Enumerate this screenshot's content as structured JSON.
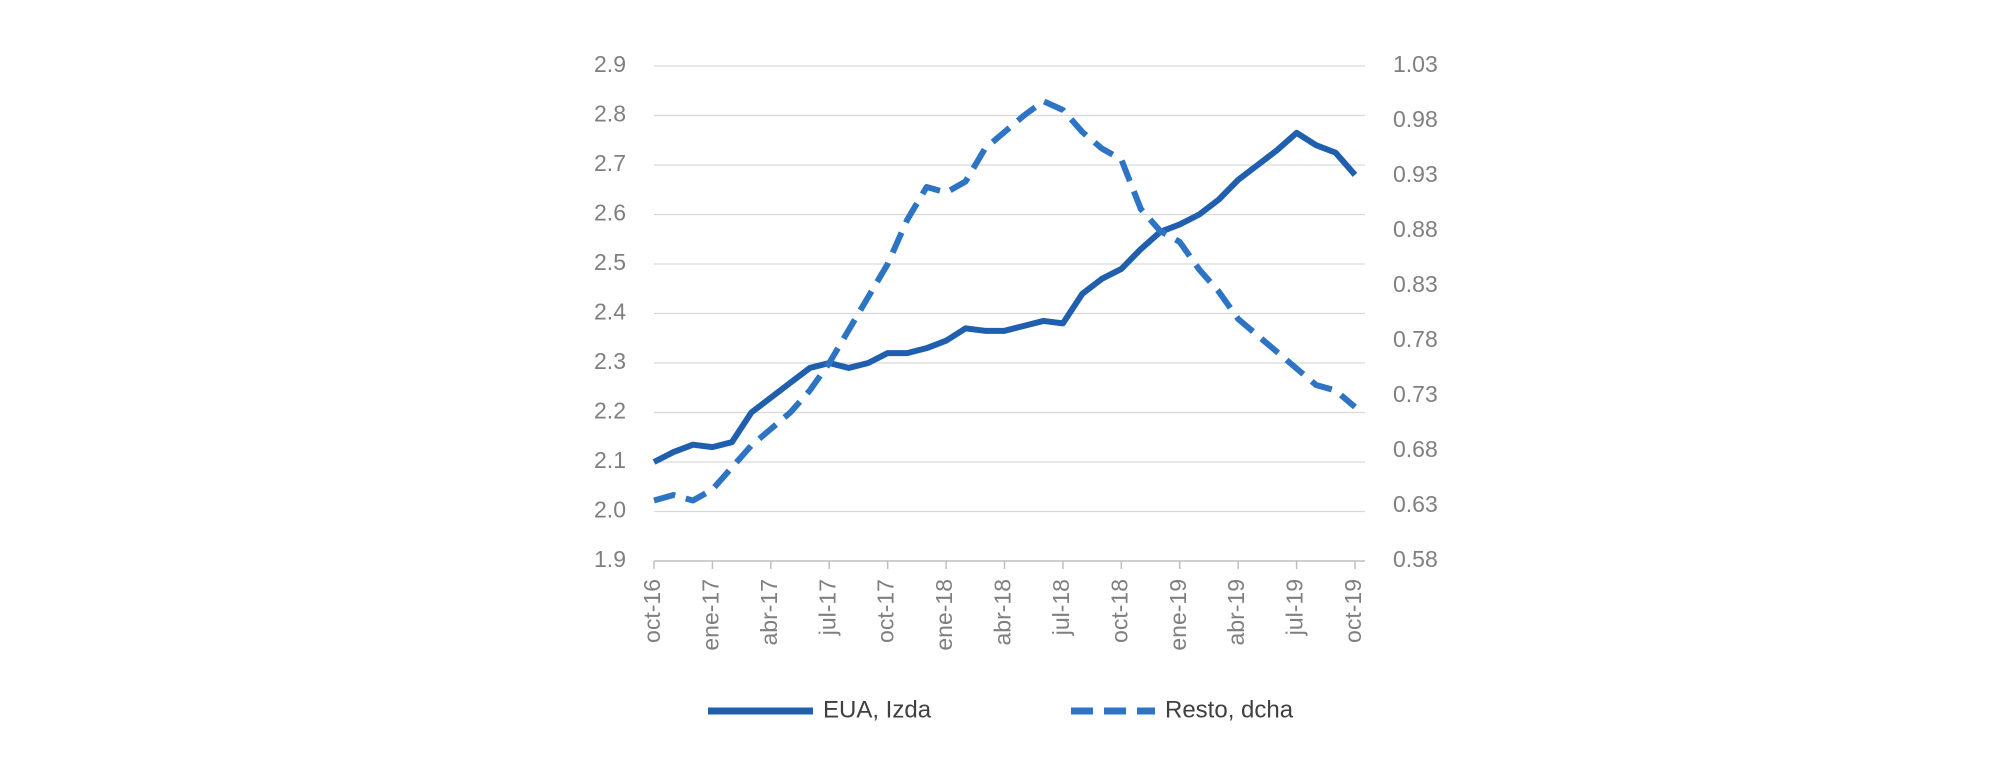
{
  "chart_data": {
    "type": "line",
    "categories": [
      "oct-16",
      null,
      null,
      "ene-17",
      null,
      null,
      "abr-17",
      null,
      null,
      "jul-17",
      null,
      null,
      "oct-17",
      null,
      null,
      "ene-18",
      null,
      null,
      "abr-18",
      null,
      null,
      "jul-18",
      null,
      null,
      "oct-18",
      null,
      null,
      "ene-19",
      null,
      null,
      "abr-19",
      null,
      null,
      "jul-19",
      null,
      null,
      "oct-19"
    ],
    "series": [
      {
        "name": "EUA, Izda",
        "color": "#1f5fae",
        "dashed": false,
        "values": [
          2.1,
          2.12,
          2.135,
          2.13,
          2.14,
          2.2,
          2.23,
          2.26,
          2.29,
          2.3,
          2.29,
          2.3,
          2.32,
          2.32,
          2.33,
          2.345,
          2.37,
          2.365,
          2.365,
          2.375,
          2.385,
          2.38,
          2.44,
          2.47,
          2.49,
          2.53,
          2.565,
          2.58,
          2.6,
          2.63,
          2.67,
          2.7,
          2.73,
          2.765,
          2.74,
          2.725,
          2.68
        ]
      },
      {
        "name": "Resto, dcha",
        "color": "#2e74c4",
        "dashed": true,
        "axis": "y2",
        "values": [
          0.635,
          0.64,
          0.635,
          0.645,
          0.665,
          0.685,
          0.7,
          0.715,
          0.735,
          0.76,
          0.79,
          0.82,
          0.85,
          0.89,
          0.92,
          0.915,
          0.925,
          0.955,
          0.97,
          0.985,
          0.998,
          0.99,
          0.97,
          0.955,
          0.945,
          0.9,
          0.88,
          0.87,
          0.845,
          0.825,
          0.8,
          0.785,
          0.77,
          0.755,
          0.74,
          0.735,
          0.72
        ]
      }
    ],
    "ylim": [
      1.9,
      2.9
    ],
    "yticks": [
      1.9,
      {
        "value": 2,
        "label": "2.0"
      },
      2.1,
      2.2,
      2.3,
      2.4,
      2.5,
      2.6,
      2.7,
      2.8,
      2.9
    ],
    "y2lim": [
      0.58,
      1.03
    ],
    "y2ticks": [
      0.58,
      0.63,
      0.68,
      0.73,
      0.78,
      0.83,
      0.88,
      0.93,
      0.98,
      1.03
    ],
    "grid": true,
    "legend": "bottom"
  }
}
